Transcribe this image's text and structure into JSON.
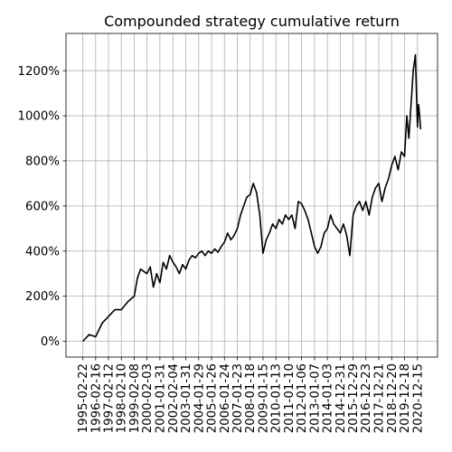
{
  "chart_data": {
    "type": "line",
    "title": "Compounded strategy cumulative return",
    "xlabel": "",
    "ylabel": "",
    "x_ticks": [
      "1995-02-22",
      "1996-02-16",
      "1997-02-12",
      "1998-02-10",
      "1999-02-08",
      "2000-02-03",
      "2001-01-31",
      "2002-02-04",
      "2003-01-31",
      "2004-01-29",
      "2005-01-26",
      "2006-01-24",
      "2007-01-23",
      "2008-01-18",
      "2009-01-15",
      "2010-01-13",
      "2011-01-10",
      "2012-01-06",
      "2013-01-07",
      "2014-01-03",
      "2014-12-31",
      "2015-12-29",
      "2016-12-23",
      "2017-12-21",
      "2018-12-20",
      "2019-12-18",
      "2020-12-15"
    ],
    "y_ticks": [
      "0%",
      "200%",
      "400%",
      "600%",
      "800%",
      "1000%",
      "1200%"
    ],
    "y_tick_values": [
      0,
      200,
      400,
      600,
      800,
      1000,
      1200
    ],
    "ylim": [
      -70,
      1365
    ],
    "grid": true,
    "color": "#000000",
    "series": [
      {
        "x": [
          "1995-02-22",
          "1995-08-20",
          "1996-02-16",
          "1996-08-15",
          "1997-02-12",
          "1997-08-12",
          "1998-02-10",
          "1998-08-10",
          "1999-02-08",
          "1999-05-08",
          "1999-08-06",
          "1999-11-04",
          "2000-02-03",
          "2000-05-03",
          "2000-08-02",
          "2000-11-01",
          "2001-01-31",
          "2001-05-03",
          "2001-08-04",
          "2001-11-03",
          "2002-02-04",
          "2002-05-04",
          "2002-08-03",
          "2002-11-02",
          "2003-01-31",
          "2003-05-01",
          "2003-07-31",
          "2003-10-30",
          "2004-01-29",
          "2004-04-28",
          "2004-07-27",
          "2004-10-26",
          "2005-01-26",
          "2005-04-26",
          "2005-07-25",
          "2005-10-24",
          "2006-01-24",
          "2006-04-24",
          "2006-07-24",
          "2006-10-23",
          "2007-01-23",
          "2007-04-22",
          "2007-07-21",
          "2007-10-19",
          "2008-01-18",
          "2008-04-17",
          "2008-07-17",
          "2008-10-16",
          "2009-01-15",
          "2009-04-15",
          "2009-07-15",
          "2009-10-14",
          "2010-01-13",
          "2010-04-12",
          "2010-07-12",
          "2010-10-11",
          "2011-01-10",
          "2011-04-09",
          "2011-07-08",
          "2011-10-07",
          "2012-01-06",
          "2012-04-06",
          "2012-07-07",
          "2012-10-07",
          "2013-01-07",
          "2013-04-06",
          "2013-07-06",
          "2013-10-05",
          "2014-01-03",
          "2014-04-03",
          "2014-07-02",
          "2014-10-01",
          "2014-12-31",
          "2015-03-31",
          "2015-06-30",
          "2015-09-29",
          "2015-12-29",
          "2016-03-28",
          "2016-06-26",
          "2016-09-24",
          "2016-12-23",
          "2017-03-23",
          "2017-06-22",
          "2017-09-21",
          "2017-12-21",
          "2018-03-21",
          "2018-06-20",
          "2018-09-19",
          "2018-12-20",
          "2019-03-20",
          "2019-06-19",
          "2019-09-18",
          "2019-12-18",
          "2020-02-18",
          "2020-04-18",
          "2020-06-18",
          "2020-08-18",
          "2020-10-18",
          "2020-12-15",
          "2021-01-15",
          "2021-02-15",
          "2021-03-15"
        ],
        "y": [
          0,
          30,
          20,
          80,
          110,
          140,
          140,
          175,
          200,
          280,
          320,
          310,
          300,
          330,
          240,
          300,
          260,
          350,
          320,
          380,
          350,
          330,
          300,
          340,
          320,
          360,
          380,
          370,
          390,
          400,
          380,
          400,
          390,
          410,
          395,
          420,
          440,
          480,
          450,
          470,
          500,
          560,
          600,
          640,
          650,
          700,
          660,
          560,
          390,
          450,
          480,
          520,
          500,
          540,
          520,
          560,
          540,
          560,
          500,
          620,
          610,
          580,
          540,
          480,
          420,
          390,
          420,
          480,
          500,
          560,
          520,
          500,
          480,
          520,
          470,
          380,
          560,
          600,
          620,
          580,
          620,
          560,
          640,
          680,
          700,
          620,
          680,
          720,
          780,
          820,
          760,
          840,
          820,
          1000,
          900,
          1050,
          1200,
          1270,
          950,
          1050,
          1000,
          940
        ]
      }
    ]
  }
}
